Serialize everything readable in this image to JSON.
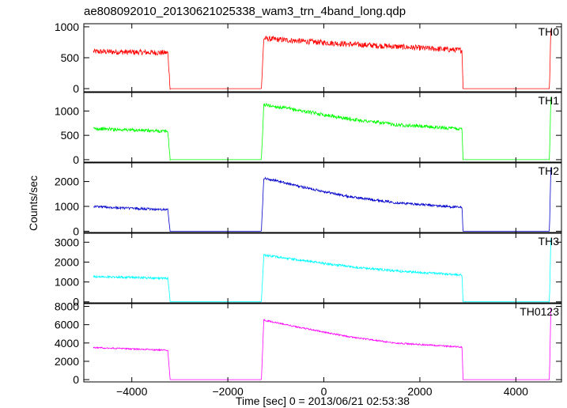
{
  "chart_data": {
    "type": "line",
    "title": "ae808092010_20130621025338_wam3_trn_4band_long.qdp",
    "xlabel": "Time [sec] 0 = 2013/06/21 02:53:38",
    "ylabel": "Counts/sec",
    "xlim": [
      -5000,
      4950
    ],
    "xticks": [
      -4000,
      -2000,
      0,
      2000,
      4000
    ],
    "xtick_labels": [
      "−4000",
      "−2000",
      "0",
      "2000",
      "4000"
    ],
    "grid": false,
    "panels": [
      {
        "label": "TH0",
        "color": "#ff0000",
        "ylim": [
          -50,
          1050
        ],
        "yticks": [
          0,
          500,
          1000
        ],
        "ytick_labels": [
          "0",
          "500",
          "1000"
        ],
        "noise": 45,
        "x": [
          -4800,
          -4000,
          -3250,
          -3200,
          -1300,
          -1250,
          -500,
          500,
          1500,
          2880,
          2900,
          4700,
          4730
        ],
        "y": [
          600,
          590,
          580,
          0,
          0,
          810,
          770,
          720,
          680,
          620,
          0,
          0,
          980
        ]
      },
      {
        "label": "TH1",
        "color": "#00ff00",
        "ylim": [
          -50,
          1380
        ],
        "yticks": [
          0,
          500,
          1000
        ],
        "ytick_labels": [
          "0",
          "500",
          "1000"
        ],
        "noise": 35,
        "x": [
          -4800,
          -4000,
          -3250,
          -3200,
          -1300,
          -1250,
          -500,
          500,
          1500,
          2880,
          2900,
          4700,
          4730
        ],
        "y": [
          640,
          610,
          580,
          0,
          0,
          1130,
          1010,
          840,
          720,
          630,
          0,
          0,
          1300
        ]
      },
      {
        "label": "TH2",
        "color": "#0000cc",
        "ylim": [
          -50,
          2750
        ],
        "yticks": [
          0,
          1000,
          2000
        ],
        "ytick_labels": [
          "0",
          "1000",
          "2000"
        ],
        "noise": 50,
        "x": [
          -4800,
          -4000,
          -3250,
          -3200,
          -1300,
          -1250,
          -500,
          500,
          1500,
          2880,
          2900,
          4700,
          4730
        ],
        "y": [
          1000,
          920,
          860,
          0,
          0,
          2150,
          1800,
          1400,
          1150,
          950,
          0,
          0,
          2600
        ]
      },
      {
        "label": "TH3",
        "color": "#00ffff",
        "ylim": [
          -50,
          3450
        ],
        "yticks": [
          0,
          1000,
          2000,
          3000
        ],
        "ytick_labels": [
          "0",
          "1000",
          "2000",
          "3000"
        ],
        "noise": 55,
        "x": [
          -4800,
          -4000,
          -3250,
          -3200,
          -1300,
          -1250,
          -500,
          500,
          1500,
          2880,
          2900,
          4700,
          4730
        ],
        "y": [
          1270,
          1230,
          1180,
          0,
          0,
          2350,
          2100,
          1780,
          1550,
          1350,
          0,
          0,
          3200
        ]
      },
      {
        "label": "TH0123",
        "color": "#ff00ff",
        "ylim": [
          -250,
          8300
        ],
        "yticks": [
          0,
          2000,
          4000,
          6000,
          8000
        ],
        "ytick_labels": [
          "0",
          "2000",
          "4000",
          "6000",
          "8000"
        ],
        "noise": 80,
        "x": [
          -4800,
          -4000,
          -3250,
          -3200,
          -1300,
          -1250,
          -500,
          500,
          1500,
          2880,
          2900,
          4700,
          4730
        ],
        "y": [
          3500,
          3350,
          3200,
          0,
          0,
          6500,
          5700,
          4700,
          4000,
          3550,
          0,
          0,
          7900
        ]
      }
    ]
  }
}
